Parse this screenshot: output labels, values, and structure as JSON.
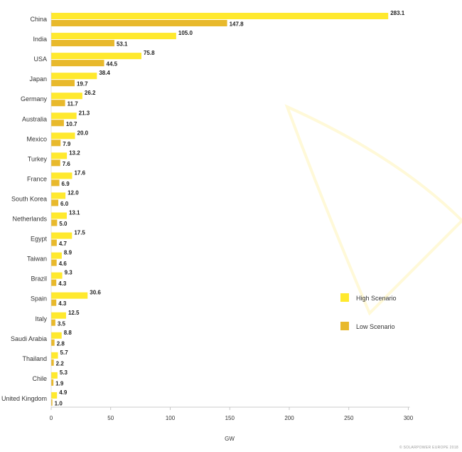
{
  "chart_data": {
    "type": "bar",
    "orientation": "horizontal",
    "categories": [
      "China",
      "India",
      "USA",
      "Japan",
      "Germany",
      "Australia",
      "Mexico",
      "Turkey",
      "France",
      "South Korea",
      "Netherlands",
      "Egypt",
      "Taiwan",
      "Brazil",
      "Spain",
      "Italy",
      "Saudi Arabia",
      "Thailand",
      "Chile",
      "United Kingdom"
    ],
    "series": [
      {
        "name": "High Scenario",
        "color": "#ffe92e",
        "values": [
          283.1,
          105.0,
          75.8,
          38.4,
          26.2,
          21.3,
          20.0,
          13.2,
          17.6,
          12.0,
          13.1,
          17.5,
          8.9,
          9.3,
          30.6,
          12.5,
          8.8,
          5.7,
          5.3,
          4.9
        ],
        "labels": [
          "283.1",
          "105.0",
          "75.8",
          "38.4",
          "26.2",
          "21.3",
          "20.0",
          "13.2",
          "17.6",
          "12.0",
          "13.1",
          "17.5",
          "8.9",
          "9.3",
          "30.6",
          "12.5",
          "8.8",
          "5.7",
          "5.3",
          "4.9"
        ]
      },
      {
        "name": "Low Scenario",
        "color": "#e8b92c",
        "values": [
          147.8,
          53.1,
          44.5,
          19.7,
          11.7,
          10.7,
          7.9,
          7.6,
          6.9,
          6.0,
          5.0,
          4.7,
          4.6,
          4.3,
          4.3,
          3.5,
          2.8,
          2.2,
          1.9,
          1.0
        ],
        "labels": [
          "147.8",
          "53.1",
          "44.5",
          "19.7",
          "11.7",
          "10.7",
          "7.9",
          "7.6",
          "6.9",
          "6.0",
          "5.0",
          "4.7",
          "4.6",
          "4.3",
          "4.3",
          "3.5",
          "2.8",
          "2.2",
          "1.9",
          "1.0"
        ]
      }
    ],
    "xlabel": "GW",
    "xlim": [
      0,
      300
    ],
    "xticks": [
      "0",
      "50",
      "100",
      "150",
      "200",
      "250",
      "300"
    ],
    "grid": false,
    "legend_position": "right"
  },
  "credit": "© SOLARPOWER EUROPE 2018"
}
